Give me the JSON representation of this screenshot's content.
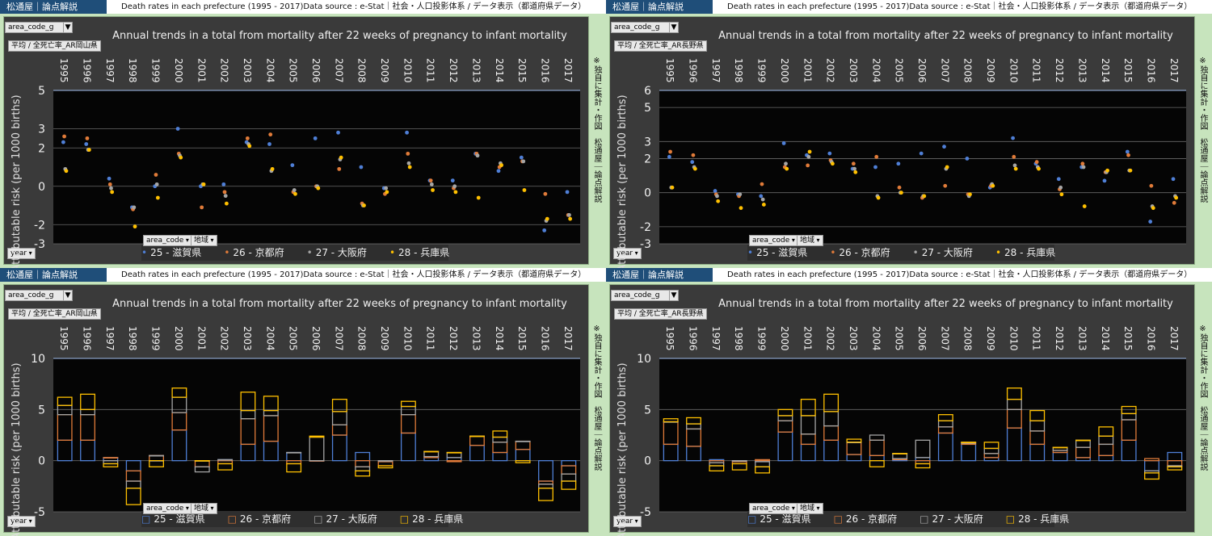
{
  "header": {
    "brand": "松通屋｜論点解説",
    "source": "Death rates in each prefecture (1995 - 2017)Data source : e-Stat｜社会・人口投影体系 / データ表示（都道府県データ）"
  },
  "sidebar_note": "※独自に集計・作図　松通屋｜論点解説",
  "filters": {
    "area_filter": "area_code_g",
    "year": "year",
    "area_code": "area_code",
    "region": "地域"
  },
  "colors": {
    "25": "#4f7fd6",
    "26": "#e07b39",
    "27": "#a5a5a5",
    "28": "#ffc000",
    "background": "#3a3a3a",
    "plot": "#050505"
  },
  "panels": [
    {
      "id": "tl",
      "subtitle": "平均 / 全死亡率_AR岡山県",
      "style": "dots"
    },
    {
      "id": "tr",
      "subtitle": "平均 / 全死亡率_AR長野県",
      "style": "dots"
    },
    {
      "id": "bl",
      "subtitle": "平均 / 全死亡率_AR岡山県",
      "style": "stacked"
    },
    {
      "id": "br",
      "subtitle": "平均 / 全死亡率_AR長野県",
      "style": "stacked"
    }
  ],
  "chart_data": [
    {
      "type": "scatter",
      "title": "Annual trends in a total from mortality after 22 weeks of pregnancy to infant mortality",
      "ylabel": "Attributable risk (per 1000 births)",
      "xlabel": "",
      "ylim": [
        -3,
        5
      ],
      "yticks": [
        -3,
        -2,
        0,
        2,
        3,
        5
      ],
      "x": [
        "1995",
        "1996",
        "1997",
        "1998",
        "1999",
        "2000",
        "2001",
        "2002",
        "2003",
        "2004",
        "2005",
        "2006",
        "2007",
        "2008",
        "2009",
        "2010",
        "2011",
        "2012",
        "2013",
        "2014",
        "2015",
        "2016",
        "2017"
      ],
      "series": [
        {
          "name": "25 - 滋賀県",
          "values": [
            2.3,
            2.2,
            0.4,
            -1.1,
            0.0,
            3.0,
            0.0,
            0.1,
            2.3,
            2.2,
            1.1,
            2.5,
            2.8,
            1.0,
            -0.1,
            2.8,
            0.3,
            0.3,
            1.7,
            0.8,
            1.5,
            -2.3,
            -0.3
          ]
        },
        {
          "name": "26 - 京都府",
          "values": [
            2.6,
            2.5,
            0.1,
            -1.2,
            0.6,
            1.7,
            -1.1,
            -0.3,
            2.5,
            2.7,
            -0.3,
            0.0,
            0.9,
            -0.9,
            -0.4,
            1.7,
            0.3,
            -0.1,
            1.7,
            1.0,
            1.3,
            -0.4,
            -1.5
          ]
        },
        {
          "name": "27 - 大阪府",
          "values": [
            0.9,
            1.9,
            -0.1,
            -1.1,
            0.1,
            1.6,
            0.1,
            -0.5,
            2.2,
            0.8,
            -0.2,
            0.0,
            1.4,
            -1.0,
            -0.1,
            1.2,
            0.1,
            0.0,
            1.6,
            1.2,
            1.3,
            -1.8,
            -1.5
          ]
        },
        {
          "name": "28 - 兵庫県",
          "values": [
            0.8,
            1.9,
            -0.3,
            -2.1,
            -0.6,
            1.5,
            0.1,
            -0.9,
            2.1,
            0.9,
            -0.4,
            -0.1,
            1.5,
            -1.0,
            -0.3,
            1.0,
            -0.2,
            -0.3,
            -0.6,
            1.1,
            -0.2,
            -1.7,
            -1.7
          ]
        }
      ],
      "legend": "bottom"
    },
    {
      "type": "scatter",
      "title": "Annual trends in a total from mortality after 22 weeks of pregnancy to infant mortality",
      "ylabel": "Attributable risk (per 1000 births)",
      "xlabel": "",
      "ylim": [
        -3,
        6
      ],
      "yticks": [
        -3,
        -2,
        0,
        2,
        3,
        5,
        6
      ],
      "x": [
        "1995",
        "1996",
        "1997",
        "1998",
        "1999",
        "2000",
        "2001",
        "2002",
        "2003",
        "2004",
        "2005",
        "2006",
        "2007",
        "2008",
        "2009",
        "2010",
        "2011",
        "2012",
        "2013",
        "2014",
        "2015",
        "2016",
        "2017"
      ],
      "series": [
        {
          "name": "25 - 滋賀県",
          "values": [
            2.1,
            1.8,
            0.1,
            -0.1,
            -0.2,
            2.9,
            2.2,
            2.3,
            1.4,
            1.5,
            1.7,
            2.3,
            2.7,
            2.0,
            0.3,
            3.2,
            1.7,
            0.8,
            1.5,
            0.7,
            2.4,
            -1.7,
            0.8
          ]
        },
        {
          "name": "26 - 京都府",
          "values": [
            2.4,
            2.2,
            -0.1,
            -0.2,
            0.5,
            1.5,
            1.6,
            1.9,
            1.7,
            2.1,
            0.3,
            -0.3,
            0.4,
            -0.1,
            0.4,
            2.1,
            1.8,
            0.2,
            1.7,
            1.2,
            2.2,
            0.4,
            -0.6
          ]
        },
        {
          "name": "27 - 大阪府",
          "values": [
            0.3,
            1.5,
            -0.2,
            -0.1,
            -0.4,
            1.7,
            2.1,
            1.8,
            1.4,
            -0.2,
            0.0,
            -0.2,
            1.4,
            -0.2,
            0.5,
            1.6,
            1.5,
            0.3,
            1.5,
            1.2,
            1.3,
            -0.8,
            -0.2
          ]
        },
        {
          "name": "28 - 兵庫県",
          "values": [
            0.3,
            1.4,
            -0.5,
            -0.9,
            -0.7,
            1.4,
            2.4,
            1.7,
            1.2,
            -0.3,
            0.0,
            -0.2,
            1.5,
            -0.1,
            0.4,
            1.4,
            1.4,
            -0.1,
            -0.8,
            1.3,
            1.3,
            -0.9,
            -0.3
          ]
        }
      ],
      "legend": "bottom"
    },
    {
      "type": "bar",
      "stacked": true,
      "title": "Annual trends in a total from mortality after 22 weeks of pregnancy to infant mortality",
      "ylabel": "Attributable risk (per 1000 births)",
      "xlabel": "",
      "ylim": [
        -5,
        10
      ],
      "yticks": [
        -5,
        0,
        5,
        10
      ],
      "x": [
        "1995",
        "1996",
        "1997",
        "1998",
        "1999",
        "2000",
        "2001",
        "2002",
        "2003",
        "2004",
        "2005",
        "2006",
        "2007",
        "2008",
        "2009",
        "2010",
        "2011",
        "2012",
        "2013",
        "2014",
        "2015",
        "2016",
        "2017"
      ],
      "series": [
        {
          "name": "25 - 滋賀県",
          "values": [
            2.0,
            2.0,
            0.3,
            -1.0,
            0.0,
            3.0,
            0.0,
            0.1,
            1.6,
            1.9,
            0.8,
            0.0,
            2.5,
            0.8,
            -0.1,
            2.7,
            0.3,
            0.3,
            1.5,
            0.8,
            1.1,
            -2.0,
            -0.5
          ]
        },
        {
          "name": "26 - 京都府",
          "values": [
            2.5,
            2.5,
            0.0,
            -1.0,
            0.5,
            1.7,
            -0.6,
            -0.3,
            2.5,
            2.5,
            -0.3,
            0.0,
            1.0,
            -0.6,
            -0.4,
            1.8,
            0.1,
            -0.1,
            0.9,
            1.0,
            0.8,
            -0.3,
            -0.8
          ]
        },
        {
          "name": "27 - 大阪府",
          "values": [
            0.9,
            0.5,
            -0.3,
            -0.7,
            0.0,
            1.5,
            -0.5,
            0.0,
            0.8,
            0.5,
            0.0,
            2.3,
            1.3,
            -0.4,
            0.0,
            0.8,
            0.5,
            0.5,
            0.0,
            0.5,
            0.0,
            -0.4,
            -0.7
          ]
        },
        {
          "name": "28 - 兵庫県",
          "values": [
            0.8,
            1.5,
            -0.3,
            -1.6,
            -0.6,
            0.9,
            0.0,
            -0.6,
            1.8,
            1.4,
            -0.8,
            0.1,
            1.2,
            -0.5,
            -0.2,
            0.5,
            0.0,
            0.0,
            0.0,
            0.6,
            -0.2,
            -1.2,
            -0.8
          ]
        }
      ],
      "legend": "bottom"
    },
    {
      "type": "bar",
      "stacked": true,
      "title": "Annual trends in a total from mortality after 22 weeks of pregnancy to infant mortality",
      "ylabel": "Attributable risk (per 1000 births)",
      "xlabel": "",
      "ylim": [
        -5,
        10
      ],
      "yticks": [
        -5,
        0,
        5,
        10
      ],
      "x": [
        "1995",
        "1996",
        "1997",
        "1998",
        "1999",
        "2000",
        "2001",
        "2002",
        "2003",
        "2004",
        "2005",
        "2006",
        "2007",
        "2008",
        "2009",
        "2010",
        "2011",
        "2012",
        "2013",
        "2014",
        "2015",
        "2016",
        "2017"
      ],
      "series": [
        {
          "name": "25 - 滋賀県",
          "values": [
            1.6,
            1.4,
            0.1,
            -0.1,
            -0.1,
            2.8,
            1.6,
            2.0,
            0.6,
            0.5,
            0.1,
            0.3,
            2.7,
            1.6,
            0.3,
            3.2,
            1.6,
            0.8,
            0.3,
            0.5,
            2.0,
            -1.0,
            0.8
          ]
        },
        {
          "name": "26 - 京都府",
          "values": [
            2.2,
            1.7,
            -0.2,
            -0.2,
            0.1,
            1.1,
            1.0,
            1.4,
            1.2,
            1.5,
            0.1,
            -0.3,
            0.6,
            0.1,
            0.4,
            1.8,
            1.3,
            0.2,
            1.0,
            1.1,
            2.0,
            0.2,
            -0.5
          ]
        },
        {
          "name": "27 - 大阪府",
          "values": [
            0.0,
            0.5,
            -0.3,
            0.0,
            -0.5,
            0.5,
            1.8,
            1.4,
            0.0,
            0.5,
            0.5,
            1.7,
            0.6,
            0.1,
            0.5,
            1.0,
            1.0,
            0.3,
            0.7,
            0.8,
            0.6,
            -0.2,
            -0.1
          ]
        },
        {
          "name": "28 - 兵庫県",
          "values": [
            0.3,
            0.6,
            -0.5,
            -0.6,
            -0.6,
            0.6,
            1.6,
            1.7,
            0.3,
            -0.6,
            0.0,
            -0.4,
            0.6,
            0.0,
            0.6,
            1.1,
            1.0,
            0.0,
            0.0,
            0.9,
            0.7,
            -0.6,
            -0.3
          ]
        }
      ],
      "legend": "bottom"
    }
  ]
}
